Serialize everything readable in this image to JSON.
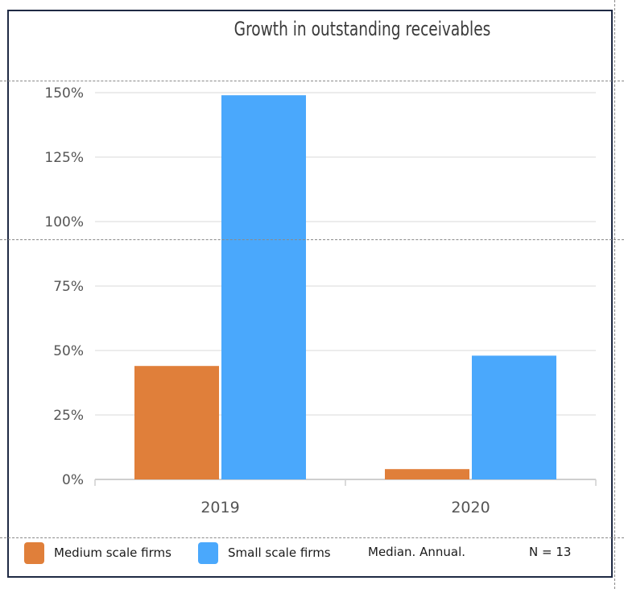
{
  "chart_data": {
    "type": "bar",
    "title": "Growth in outstanding receivables",
    "categories": [
      "2019",
      "2020"
    ],
    "series": [
      {
        "name": "Medium scale firms",
        "color": "#e07f3a",
        "values": [
          44,
          4
        ]
      },
      {
        "name": "Small scale firms",
        "color": "#4aa8fc",
        "values": [
          149,
          48
        ]
      }
    ],
    "ylim": [
      0,
      150
    ],
    "yticks": [
      "0%",
      "25%",
      "50%",
      "75%",
      "100%",
      "125%",
      "150%"
    ],
    "ytick_values": [
      0,
      25,
      50,
      75,
      100,
      125,
      150
    ],
    "grid": true,
    "legend_position": "bottom-left"
  },
  "notes": {
    "statistic": "Median. Annual.",
    "sample_size": "N = 13"
  }
}
